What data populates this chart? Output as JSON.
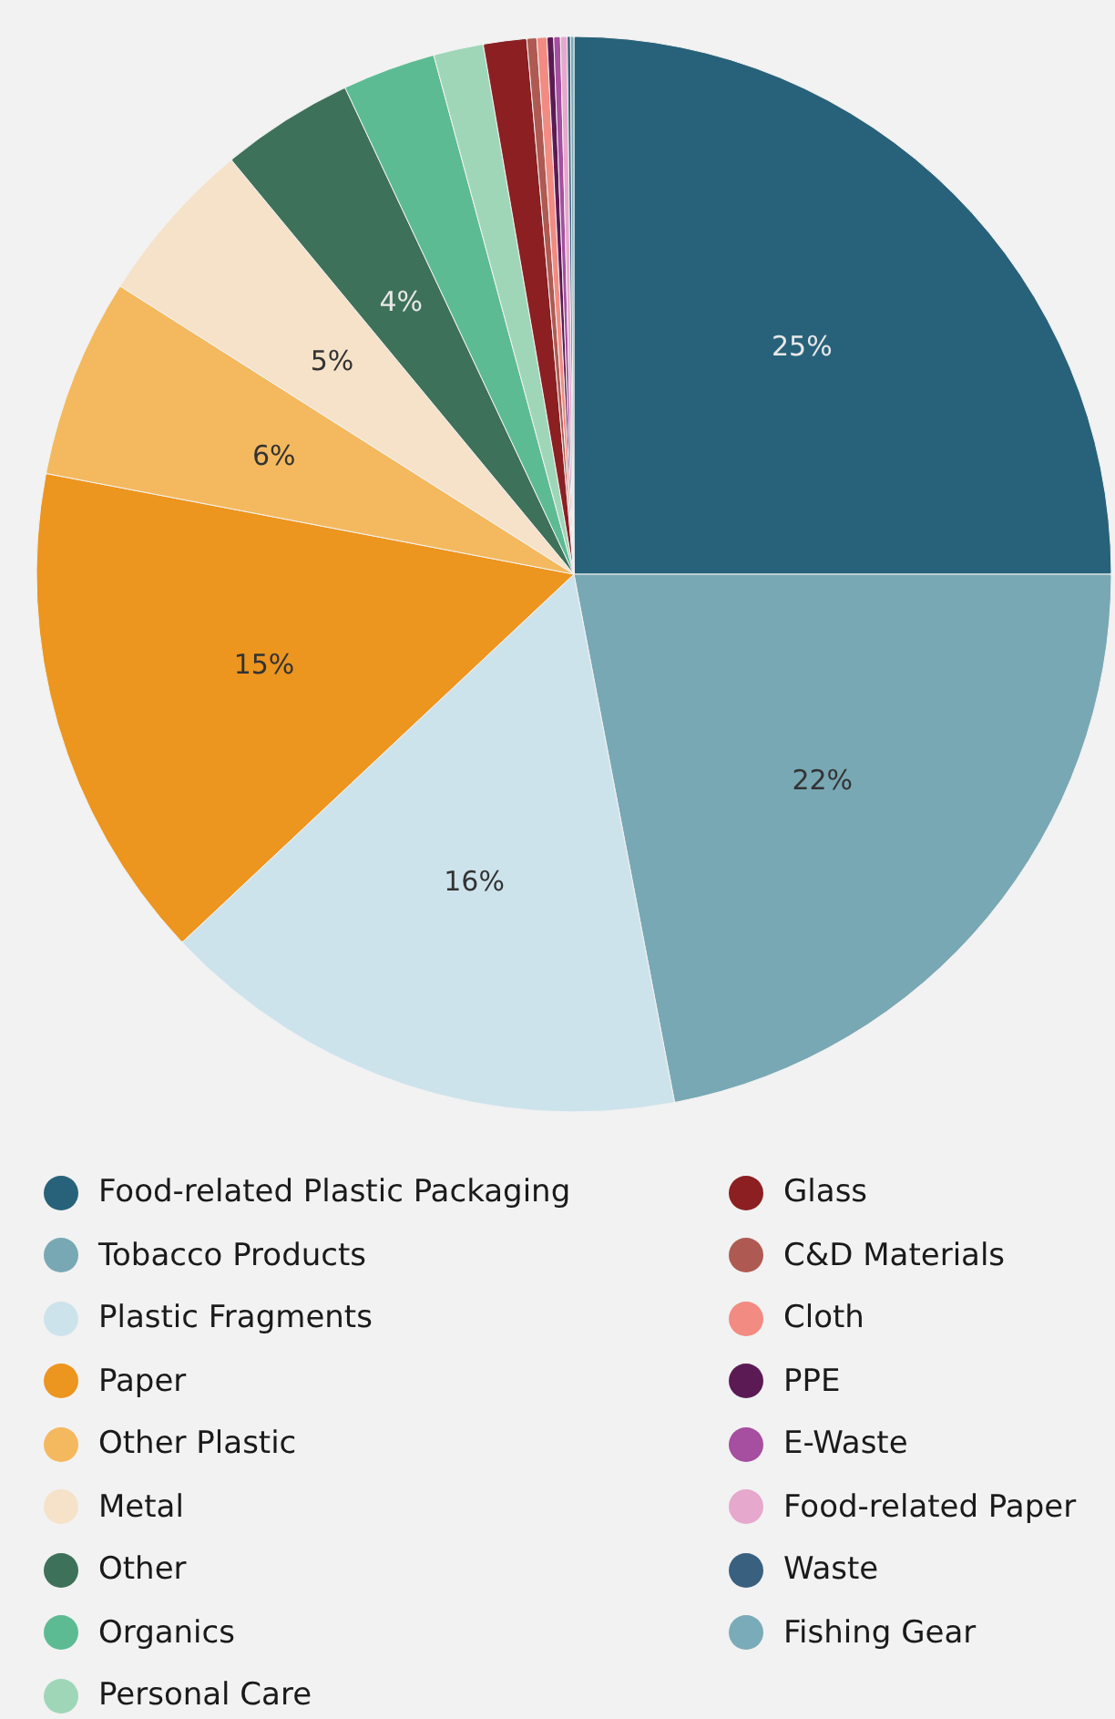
{
  "chart_data": {
    "type": "pie",
    "categories": [
      "Food-related Plastic Packaging",
      "Tobacco Products",
      "Plastic Fragments",
      "Paper",
      "Other Plastic",
      "Metal",
      "Other",
      "Organics",
      "Personal Care",
      "Glass",
      "C&D Materials",
      "Cloth",
      "PPE",
      "E-Waste",
      "Food-related Paper",
      "Waste",
      "Fishing Gear"
    ],
    "values": [
      25,
      22,
      16,
      15,
      6,
      5,
      4,
      2.8,
      1.5,
      1.3,
      0.3,
      0.3,
      0.2,
      0.2,
      0.2,
      0.1,
      0.1
    ],
    "colors": [
      "#28627a",
      "#78a8b4",
      "#cde3ec",
      "#ec951f",
      "#f4b95e",
      "#f5e2c8",
      "#3e715a",
      "#5dbb93",
      "#9fd6b8",
      "#8b1f22",
      "#ae5a52",
      "#f28b82",
      "#5c1a55",
      "#a64ea0",
      "#e6a8cc",
      "#3a6080",
      "#7aabb8"
    ],
    "value_labels": [
      "25%",
      "22%",
      "16%",
      "15%",
      "6%",
      "5%",
      "4%",
      null,
      null,
      null,
      null,
      null,
      null,
      null,
      null,
      null,
      null
    ],
    "legend": "bottom"
  }
}
